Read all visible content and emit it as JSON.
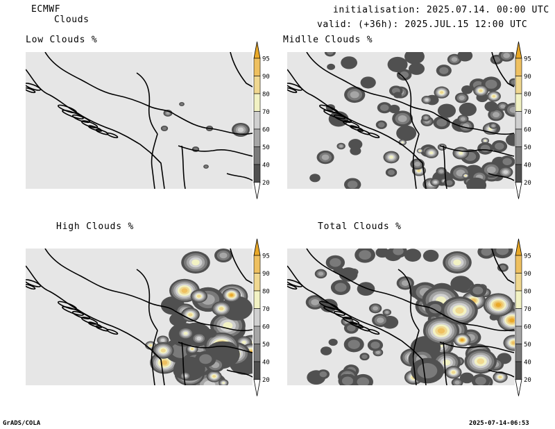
{
  "header": {
    "model": "ECMWF",
    "field": "Clouds",
    "init": "initialisation: 2025.07.14. 00:00 UTC",
    "valid": "valid: (+36h): 2025.JUL.15 12:00 UTC"
  },
  "panels": [
    {
      "title": "Low Clouds %"
    },
    {
      "title": "Midlle Clouds %"
    },
    {
      "title": "High Clouds %"
    },
    {
      "title": "Total Clouds %"
    }
  ],
  "colorbar": {
    "levels": [
      "20",
      "40",
      "50",
      "60",
      "70",
      "80",
      "90",
      "95"
    ],
    "colors": [
      "#e6e6e6",
      "#505050",
      "#7a7a7a",
      "#a6a6a6",
      "#d0d0d0",
      "#f2f2c4",
      "#f0d890",
      "#eec060",
      "#e8a828"
    ]
  },
  "footer": {
    "left": "GrADS/COLA",
    "right": "2025-07-14-06:53"
  }
}
